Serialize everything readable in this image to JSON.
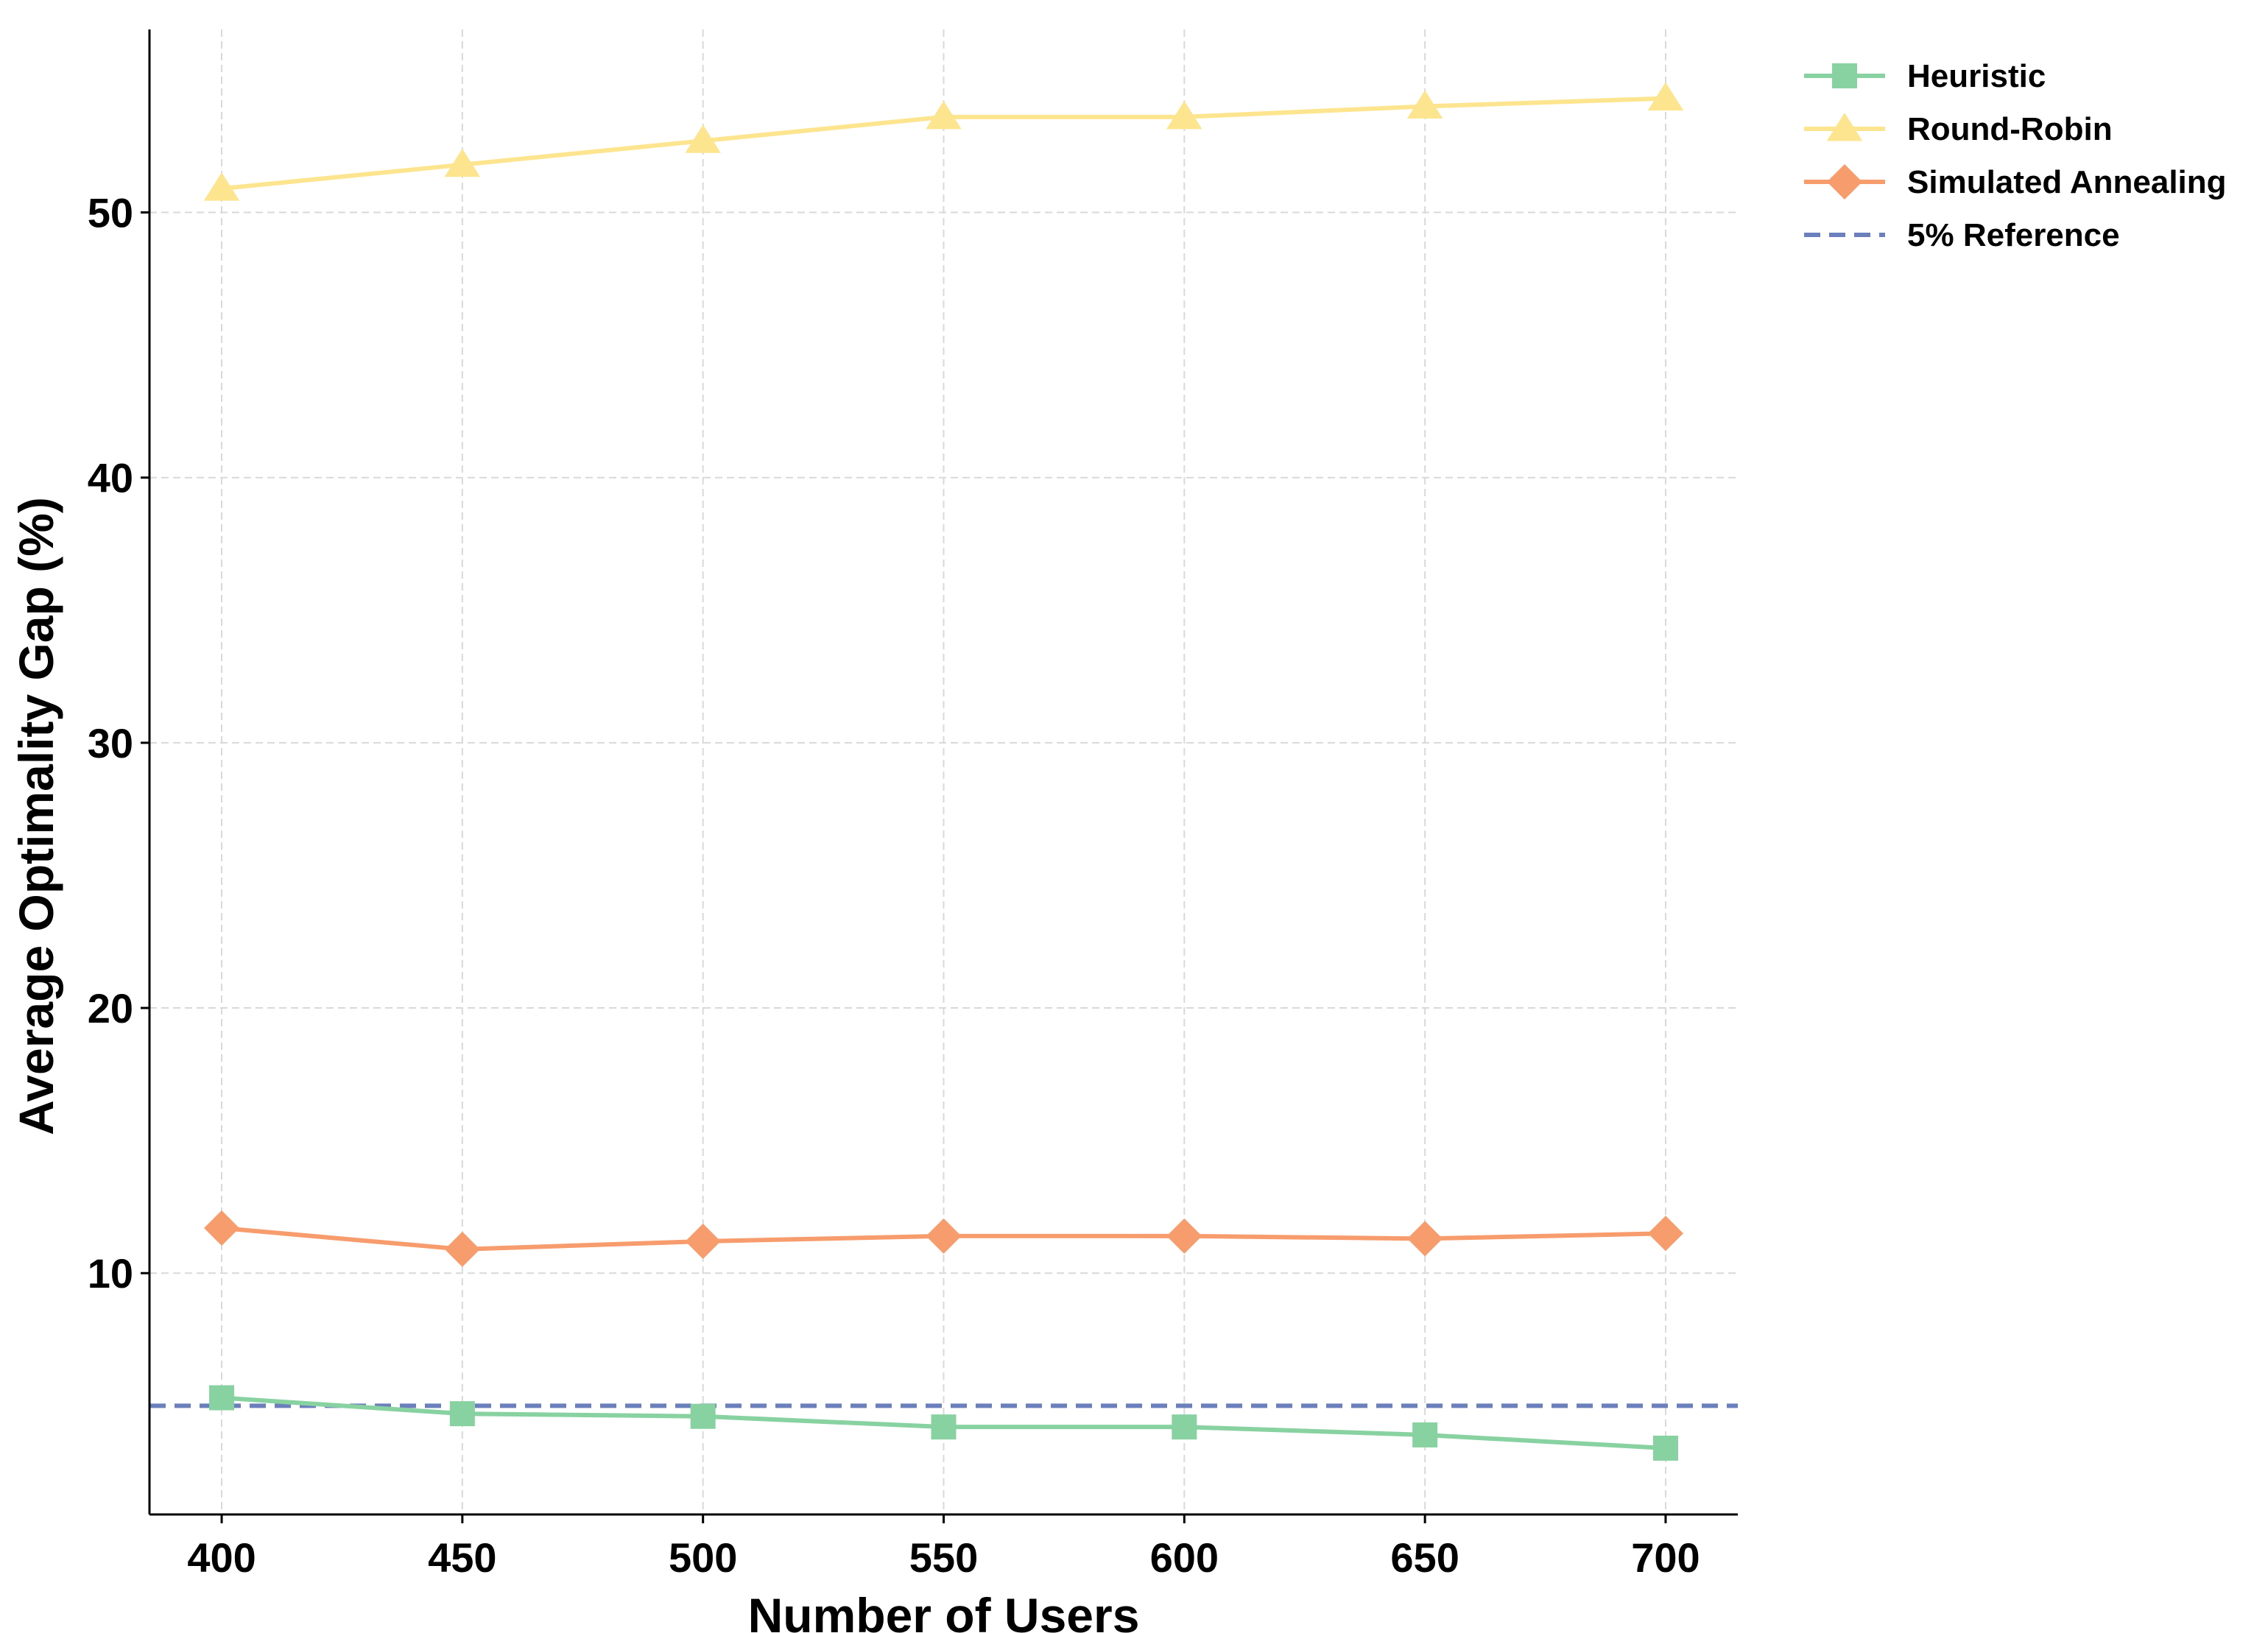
{
  "chart_data": {
    "type": "line",
    "title": "",
    "xlabel": "Number of Users",
    "ylabel": "Average Optimality Gap (%)",
    "x": [
      400,
      450,
      500,
      550,
      600,
      650,
      700
    ],
    "x_ticks": [
      400,
      450,
      500,
      550,
      600,
      650,
      700
    ],
    "y_ticks": [
      10,
      20,
      30,
      40,
      50
    ],
    "xlim": [
      385,
      715
    ],
    "ylim": [
      0.9,
      56.9
    ],
    "grid": true,
    "legend_position": "top-right, outside plot",
    "series": [
      {
        "name": "Heuristic",
        "color": "#88d1a1",
        "marker": "square",
        "values": [
          5.3,
          4.7,
          4.6,
          4.2,
          4.2,
          3.9,
          3.4
        ]
      },
      {
        "name": "Round-Robin",
        "color": "#fde58f",
        "marker": "triangle",
        "values": [
          50.9,
          51.8,
          52.7,
          53.6,
          53.6,
          54.0,
          54.3
        ]
      },
      {
        "name": "Simulated Annealing",
        "color": "#f79c6c",
        "marker": "diamond",
        "values": [
          11.7,
          10.9,
          11.2,
          11.4,
          11.4,
          11.3,
          11.5
        ]
      }
    ],
    "reference_lines": [
      {
        "name": "5% Reference",
        "y": 5,
        "color": "#6b7fbc",
        "style": "dashed"
      }
    ]
  }
}
